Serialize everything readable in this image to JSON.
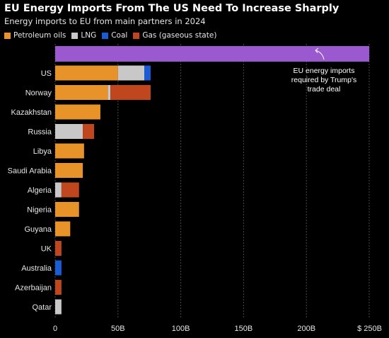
{
  "chart_data": {
    "type": "bar",
    "orientation": "horizontal",
    "stacked": true,
    "title": "EU Energy Imports From The US Need To Increase Sharply",
    "subtitle": "Energy imports to EU from main partners in 2024",
    "xlim": [
      0,
      250
    ],
    "x_ticks": [
      0,
      50,
      100,
      150,
      200,
      250
    ],
    "x_tick_labels": [
      "0",
      "50B",
      "100B",
      "150B",
      "200B",
      "$ 250B"
    ],
    "grid": true,
    "legend_position": "top-left",
    "target": {
      "value": 250,
      "color": "#9b59d0",
      "annotation": [
        "EU energy imports",
        "required by Trump's",
        "trade deal"
      ]
    },
    "categories": [
      "US",
      "Norway",
      "Kazakhstan",
      "Russia",
      "Libya",
      "Saudi Arabia",
      "Algeria",
      "Nigeria",
      "Guyana",
      "UK",
      "Australia",
      "Azerbaijan",
      "Qatar"
    ],
    "series": [
      {
        "name": "Petroleum oils",
        "color": "#e8922a",
        "values": [
          50,
          42,
          36,
          0,
          23,
          22,
          0,
          19,
          12,
          0,
          0,
          0,
          0
        ]
      },
      {
        "name": "LNG",
        "color": "#c8c8c8",
        "values": [
          21,
          2,
          0,
          22,
          0,
          0,
          5,
          0,
          0,
          0,
          0,
          0,
          5
        ]
      },
      {
        "name": "Coal",
        "color": "#1a5cd6",
        "values": [
          5,
          0,
          0,
          0,
          0,
          0,
          0,
          0,
          0,
          0,
          5,
          0,
          0
        ]
      },
      {
        "name": "Gas (gaseous state)",
        "color": "#c0461e",
        "values": [
          0,
          32,
          0,
          9,
          0,
          0,
          14,
          0,
          0,
          5,
          0,
          5,
          0
        ]
      }
    ]
  }
}
